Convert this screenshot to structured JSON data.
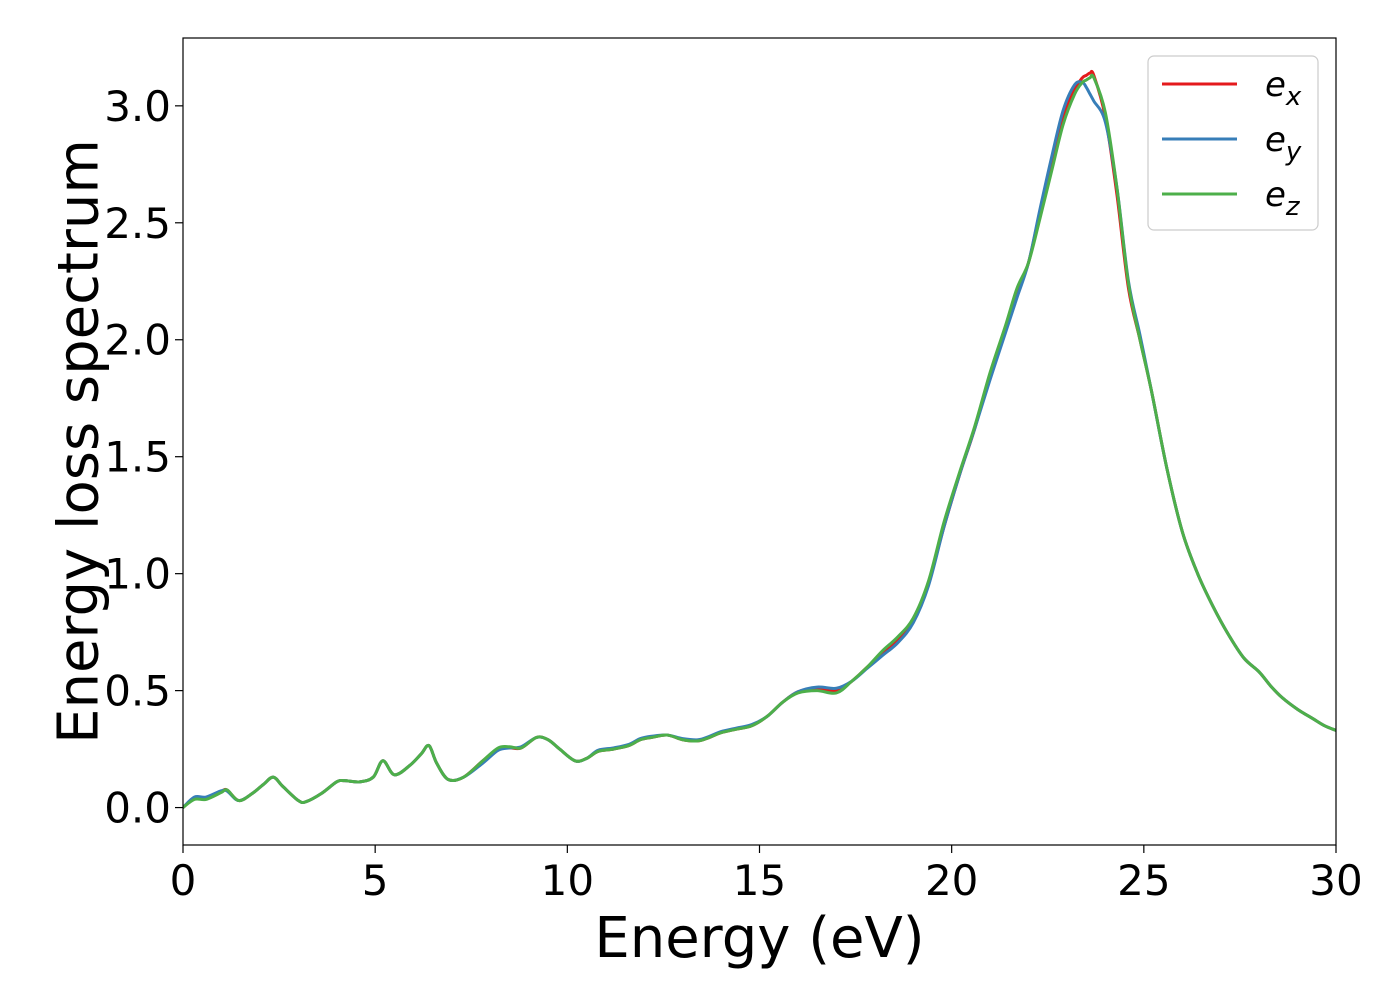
{
  "chart_data": {
    "type": "line",
    "xlabel": "Energy (eV)",
    "ylabel": "Energy loss spectrum",
    "xlim": [
      0,
      30
    ],
    "ylim": [
      -0.16,
      3.29
    ],
    "xticks": [
      0,
      5,
      10,
      15,
      20,
      25,
      30
    ],
    "yticks": [
      0.0,
      0.5,
      1.0,
      1.5,
      2.0,
      2.5,
      3.0
    ],
    "xtick_labels": [
      "0",
      "5",
      "10",
      "15",
      "20",
      "25",
      "30"
    ],
    "ytick_labels": [
      "0.0",
      "0.5",
      "1.0",
      "1.5",
      "2.0",
      "2.5",
      "3.0"
    ],
    "grid": false,
    "legend": "top-right",
    "x": [
      0.0,
      0.3,
      0.6,
      1.0,
      1.15,
      1.45,
      1.8,
      2.1,
      2.35,
      2.6,
      3.0,
      3.2,
      3.6,
      4.0,
      4.2,
      4.6,
      4.95,
      5.2,
      5.5,
      5.9,
      6.2,
      6.4,
      6.6,
      6.9,
      7.3,
      7.8,
      8.2,
      8.5,
      8.8,
      9.2,
      9.5,
      9.8,
      10.2,
      10.5,
      10.8,
      11.2,
      11.6,
      11.9,
      12.2,
      12.6,
      13.0,
      13.4,
      13.7,
      14.0,
      14.4,
      14.8,
      15.2,
      15.6,
      16.0,
      16.5,
      17.0,
      17.4,
      17.8,
      18.2,
      18.6,
      19.0,
      19.4,
      19.8,
      20.2,
      20.6,
      21.0,
      21.4,
      21.7,
      22.0,
      22.3,
      22.6,
      22.9,
      23.2,
      23.4,
      23.5,
      23.6,
      23.7,
      24.0,
      24.3,
      24.6,
      24.9,
      25.2,
      25.6,
      26.0,
      26.4,
      26.8,
      27.2,
      27.6,
      28.0,
      28.3,
      28.6,
      29.0,
      29.4,
      29.7,
      30.0
    ],
    "series": [
      {
        "name": "e_x",
        "label_base": "e",
        "label_sub": "x",
        "color": "#e41a1c",
        "values": [
          0.0,
          0.04,
          0.04,
          0.07,
          0.075,
          0.03,
          0.06,
          0.1,
          0.13,
          0.09,
          0.03,
          0.025,
          0.06,
          0.11,
          0.115,
          0.11,
          0.13,
          0.2,
          0.14,
          0.18,
          0.23,
          0.265,
          0.19,
          0.12,
          0.13,
          0.2,
          0.25,
          0.255,
          0.255,
          0.3,
          0.29,
          0.25,
          0.2,
          0.21,
          0.24,
          0.25,
          0.265,
          0.29,
          0.3,
          0.31,
          0.29,
          0.285,
          0.3,
          0.32,
          0.335,
          0.35,
          0.39,
          0.45,
          0.495,
          0.51,
          0.5,
          0.54,
          0.6,
          0.66,
          0.72,
          0.8,
          0.96,
          1.2,
          1.42,
          1.62,
          1.85,
          2.05,
          2.2,
          2.33,
          2.55,
          2.75,
          2.95,
          3.07,
          3.12,
          3.13,
          3.14,
          3.13,
          2.95,
          2.62,
          2.22,
          2.0,
          1.78,
          1.45,
          1.18,
          1.0,
          0.86,
          0.74,
          0.64,
          0.58,
          0.52,
          0.47,
          0.42,
          0.38,
          0.35,
          0.33
        ]
      },
      {
        "name": "e_y",
        "label_base": "e",
        "label_sub": "y",
        "color": "#377eb8",
        "values": [
          0.0,
          0.045,
          0.045,
          0.072,
          0.07,
          0.03,
          0.06,
          0.1,
          0.13,
          0.09,
          0.03,
          0.025,
          0.06,
          0.11,
          0.115,
          0.11,
          0.13,
          0.2,
          0.14,
          0.18,
          0.23,
          0.265,
          0.19,
          0.12,
          0.13,
          0.19,
          0.245,
          0.255,
          0.26,
          0.3,
          0.29,
          0.25,
          0.2,
          0.21,
          0.245,
          0.255,
          0.27,
          0.295,
          0.305,
          0.31,
          0.295,
          0.29,
          0.305,
          0.325,
          0.34,
          0.355,
          0.39,
          0.45,
          0.495,
          0.515,
          0.51,
          0.54,
          0.595,
          0.65,
          0.705,
          0.79,
          0.95,
          1.2,
          1.42,
          1.62,
          1.83,
          2.03,
          2.18,
          2.33,
          2.56,
          2.78,
          2.98,
          3.09,
          3.1,
          3.08,
          3.05,
          3.02,
          2.93,
          2.65,
          2.25,
          2.02,
          1.78,
          1.45,
          1.18,
          1.0,
          0.86,
          0.74,
          0.64,
          0.58,
          0.52,
          0.47,
          0.42,
          0.38,
          0.35,
          0.33
        ]
      },
      {
        "name": "e_z",
        "label_base": "e",
        "label_sub": "z",
        "color": "#4daf4a",
        "values": [
          0.0,
          0.035,
          0.035,
          0.065,
          0.075,
          0.03,
          0.06,
          0.1,
          0.13,
          0.09,
          0.03,
          0.025,
          0.06,
          0.11,
          0.115,
          0.11,
          0.13,
          0.2,
          0.14,
          0.18,
          0.23,
          0.265,
          0.19,
          0.12,
          0.13,
          0.2,
          0.255,
          0.26,
          0.255,
          0.3,
          0.29,
          0.25,
          0.2,
          0.21,
          0.24,
          0.25,
          0.265,
          0.29,
          0.3,
          0.31,
          0.29,
          0.285,
          0.3,
          0.32,
          0.335,
          0.35,
          0.39,
          0.45,
          0.49,
          0.5,
          0.49,
          0.54,
          0.6,
          0.67,
          0.73,
          0.81,
          0.97,
          1.22,
          1.43,
          1.63,
          1.86,
          2.06,
          2.22,
          2.33,
          2.52,
          2.72,
          2.92,
          3.05,
          3.1,
          3.11,
          3.12,
          3.12,
          2.97,
          2.65,
          2.24,
          2.0,
          1.78,
          1.45,
          1.18,
          1.0,
          0.86,
          0.74,
          0.64,
          0.58,
          0.52,
          0.47,
          0.42,
          0.38,
          0.35,
          0.33
        ]
      }
    ]
  }
}
